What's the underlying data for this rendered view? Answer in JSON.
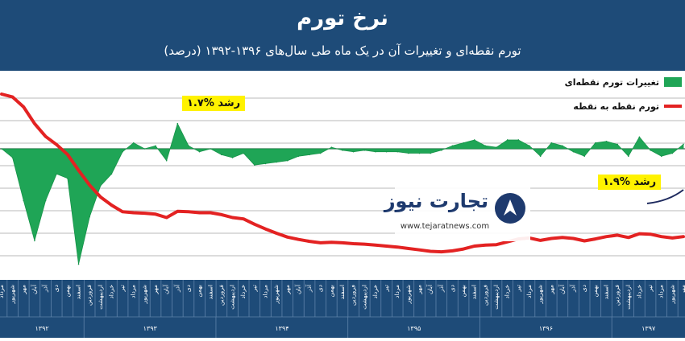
{
  "header": {
    "title": "نرخ تورم",
    "subtitle": "تورم نقطه‌ای و تغییرات آن در یک ماه طی سال‌های ۱۳۹۶-۱۳۹۲ (درصد)"
  },
  "colors": {
    "header_bg": "#1e4b78",
    "area": "#1fa556",
    "line": "#e32222",
    "callout_bg": "#fff200"
  },
  "callouts": [
    {
      "text": "رشد %۱.۷"
    },
    {
      "text": "رشد %۱.۹"
    }
  ],
  "legend": {
    "area_label": "تغییرات تورم نقطه‌ای",
    "line_label": "تورم نقطه به نقطه",
    "placement": "top-right"
  },
  "watermark": {
    "name": "تجارت نیوز",
    "url": "www.tejaratnews.com",
    "icon": "tejaratnews-logo-icon"
  },
  "chart_data": {
    "type": "line",
    "grid": true,
    "x": [
      "مرداد",
      "شهریور",
      "مهر",
      "آبان",
      "آذر",
      "دی",
      "بهمن",
      "اسفند",
      "فروردین",
      "اردیبهشت",
      "خرداد",
      "تیر",
      "مرداد",
      "شهریور",
      "مهر",
      "آبان",
      "آذر",
      "دی",
      "بهمن",
      "اسفند",
      "فروردین",
      "اردیبهشت",
      "خرداد",
      "تیر",
      "مرداد",
      "شهریور",
      "مهر",
      "آبان",
      "آذر",
      "دی",
      "بهمن",
      "اسفند",
      "فروردین",
      "اردیبهشت",
      "خرداد",
      "تیر",
      "مرداد",
      "شهریور",
      "مهر",
      "آبان",
      "آذر",
      "دی",
      "بهمن",
      "اسفند",
      "فروردین",
      "اردیبهشت",
      "خرداد",
      "تیر",
      "مرداد",
      "شهریور",
      "مهر",
      "آبان",
      "آذر",
      "دی",
      "بهمن",
      "اسفند",
      "فروردین",
      "اردیبهشت",
      "خرداد",
      "تیر",
      "مرداد",
      "شهریور",
      "مهر"
    ],
    "years": [
      {
        "label": "۱۳۹۲",
        "start": 0,
        "end": 7
      },
      {
        "label": "۱۳۹۳",
        "start": 8,
        "end": 19
      },
      {
        "label": "۱۳۹۴",
        "start": 20,
        "end": 31
      },
      {
        "label": "۱۳۹۵",
        "start": 32,
        "end": 43
      },
      {
        "label": "۱۳۹۶",
        "start": 44,
        "end": 55
      },
      {
        "label": "۱۳۹۷",
        "start": 56,
        "end": 62
      }
    ],
    "series": [
      {
        "kind": "line",
        "values": [
          40.5,
          39.9,
          37.8,
          34.3,
          31.6,
          29.9,
          27.8,
          24.5,
          21.4,
          18.9,
          17.2,
          15.8,
          15.6,
          15.5,
          15.3,
          14.6,
          15.9,
          15.8,
          15.6,
          15.6,
          15.2,
          14.6,
          14.3,
          13.2,
          12.2,
          11.3,
          10.5,
          10.0,
          9.6,
          9.3,
          9.4,
          9.3,
          9.1,
          9.0,
          8.8,
          8.6,
          8.4,
          8.1,
          7.8,
          7.5,
          7.4,
          7.6,
          8.0,
          8.6,
          8.8,
          8.9,
          9.5,
          10.1,
          10.3,
          9.8,
          10.2,
          10.4,
          10.2,
          9.7,
          10.1,
          10.6,
          10.9,
          10.4,
          11.2,
          11.1,
          10.6,
          10.3,
          10.6
        ]
      },
      {
        "kind": "area",
        "values": [
          0.0,
          -0.6,
          -3.5,
          -6.2,
          -3.5,
          -1.7,
          -2.0,
          -7.8,
          -4.6,
          -2.5,
          -1.7,
          -0.2,
          0.4,
          0.0,
          0.2,
          -0.8,
          1.7,
          0.2,
          -0.2,
          0.0,
          -0.4,
          -0.6,
          -0.3,
          -1.1,
          -1.0,
          -0.9,
          -0.8,
          -0.5,
          -0.4,
          -0.3,
          0.1,
          -0.1,
          -0.2,
          -0.1,
          -0.2,
          -0.2,
          -0.2,
          -0.3,
          -0.3,
          -0.3,
          -0.1,
          0.2,
          0.4,
          0.6,
          0.2,
          0.1,
          0.6,
          0.6,
          0.2,
          -0.5,
          0.4,
          0.2,
          -0.2,
          -0.5,
          0.4,
          0.5,
          0.3,
          -0.5,
          0.8,
          -0.1,
          -0.5,
          -0.3,
          0.3
        ]
      }
    ]
  }
}
